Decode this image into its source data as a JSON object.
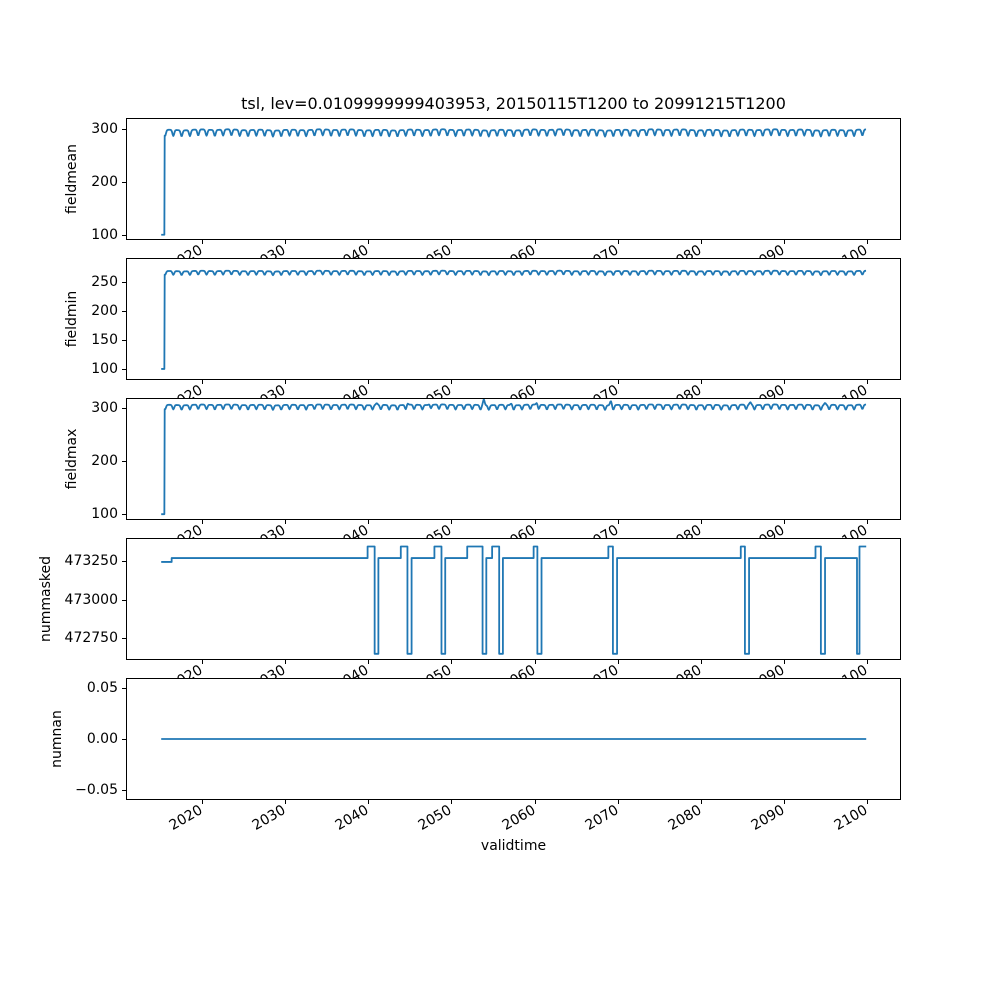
{
  "figure": {
    "title": "tsl, lev=0.0109999999403953, 20150115T1200 to 20991215T1200",
    "xlabel": "validtime",
    "background": "#ffffff",
    "line_color": "#1f77b4",
    "axis_color": "#000000",
    "xlim": [
      2010.8,
      2104.15
    ],
    "x_tick_rotation_deg": 30,
    "time_range": {
      "start": 2015.04,
      "end": 2099.96
    },
    "xticks": [
      {
        "v": 2020,
        "label": "2020"
      },
      {
        "v": 2030,
        "label": "2030"
      },
      {
        "v": 2040,
        "label": "2040"
      },
      {
        "v": 2050,
        "label": "2050"
      },
      {
        "v": 2060,
        "label": "2060"
      },
      {
        "v": 2070,
        "label": "2070"
      },
      {
        "v": 2080,
        "label": "2080"
      },
      {
        "v": 2090,
        "label": "2090"
      },
      {
        "v": 2100,
        "label": "2100"
      }
    ]
  },
  "chart_data": [
    {
      "id": "fieldmean",
      "type": "line",
      "ylabel": "fieldmean",
      "ylim": [
        90,
        321
      ],
      "yticks": [
        {
          "v": 100,
          "label": "100"
        },
        {
          "v": 200,
          "label": "200"
        },
        {
          "v": 300,
          "label": "300"
        }
      ],
      "series": {
        "kind": "seasonal",
        "t_start": 2015.04,
        "flat_until": 2015.42,
        "start_value": 100,
        "high": 298.5,
        "low": 287,
        "t_end": 2099.96,
        "period_years": 1,
        "peaks": []
      }
    },
    {
      "id": "fieldmin",
      "type": "line",
      "ylabel": "fieldmin",
      "ylim": [
        81,
        291
      ],
      "yticks": [
        {
          "v": 100,
          "label": "100"
        },
        {
          "v": 150,
          "label": "150"
        },
        {
          "v": 200,
          "label": "200"
        },
        {
          "v": 250,
          "label": "250"
        }
      ],
      "series": {
        "kind": "seasonal",
        "t_start": 2015.04,
        "flat_until": 2015.42,
        "start_value": 100,
        "high": 268.5,
        "low": 262,
        "t_end": 2099.96,
        "period_years": 1,
        "peaks": []
      }
    },
    {
      "id": "fieldmax",
      "type": "line",
      "ylabel": "fieldmax",
      "ylim": [
        89,
        319
      ],
      "yticks": [
        {
          "v": 100,
          "label": "100"
        },
        {
          "v": 200,
          "label": "200"
        },
        {
          "v": 300,
          "label": "300"
        }
      ],
      "series": {
        "kind": "seasonal",
        "t_start": 2015.04,
        "flat_until": 2015.42,
        "start_value": 100,
        "high": 306,
        "low": 297.5,
        "t_end": 2099.96,
        "period_years": 1,
        "peaks": [
          {
            "t": 2053.9,
            "amp": 11
          },
          {
            "t": 2069.2,
            "amp": 8
          },
          {
            "t": 2047.4,
            "amp": 4
          },
          {
            "t": 2060.3,
            "amp": 4
          },
          {
            "t": 2086.0,
            "amp": 5
          },
          {
            "t": 2095.0,
            "amp": 4
          },
          {
            "t": 2044.7,
            "amp": 3
          },
          {
            "t": 2041.0,
            "amp": 3
          },
          {
            "t": 2057.2,
            "amp": 3
          }
        ]
      }
    },
    {
      "id": "nummasked",
      "type": "line",
      "ylabel": "nummasked",
      "ylim": [
        472610,
        473400
      ],
      "yticks": [
        {
          "v": 472750,
          "label": "472750"
        },
        {
          "v": 473000,
          "label": "473000"
        },
        {
          "v": 473250,
          "label": "473250"
        }
      ],
      "series": {
        "kind": "steps",
        "segments": [
          [
            2015.04,
            2016.3,
            473245
          ],
          [
            2016.3,
            2039.9,
            473270
          ],
          [
            2039.9,
            2040.75,
            473345
          ],
          [
            2040.75,
            2041.2,
            472650
          ],
          [
            2041.2,
            2043.9,
            473270
          ],
          [
            2043.9,
            2044.7,
            473345
          ],
          [
            2044.7,
            2045.2,
            472650
          ],
          [
            2045.2,
            2047.95,
            473270
          ],
          [
            2047.95,
            2048.8,
            473345
          ],
          [
            2048.8,
            2049.25,
            472650
          ],
          [
            2049.25,
            2051.9,
            473270
          ],
          [
            2051.9,
            2053.75,
            473345
          ],
          [
            2053.75,
            2054.2,
            472650
          ],
          [
            2054.2,
            2054.9,
            473270
          ],
          [
            2054.9,
            2055.75,
            473345
          ],
          [
            2055.75,
            2056.2,
            472650
          ],
          [
            2056.2,
            2059.9,
            473270
          ],
          [
            2059.9,
            2060.35,
            473345
          ],
          [
            2060.35,
            2060.85,
            472650
          ],
          [
            2060.85,
            2068.9,
            473270
          ],
          [
            2068.9,
            2069.45,
            473345
          ],
          [
            2069.45,
            2069.95,
            472650
          ],
          [
            2069.95,
            2084.85,
            473270
          ],
          [
            2084.85,
            2085.35,
            473345
          ],
          [
            2085.35,
            2085.85,
            472650
          ],
          [
            2085.85,
            2093.85,
            473270
          ],
          [
            2093.85,
            2094.5,
            473345
          ],
          [
            2094.5,
            2095.0,
            472650
          ],
          [
            2095.0,
            2098.85,
            473270
          ],
          [
            2098.85,
            2099.15,
            472650
          ],
          [
            2099.15,
            2099.96,
            473345
          ]
        ]
      }
    },
    {
      "id": "numnan",
      "type": "line",
      "ylabel": "numnan",
      "ylim": [
        -0.0598,
        0.0598
      ],
      "yticks": [
        {
          "v": 0.05,
          "label": "0.05"
        },
        {
          "v": 0,
          "label": "0.00"
        },
        {
          "v": -0.05,
          "label": "−0.05"
        }
      ],
      "series": {
        "kind": "constant",
        "value": 0,
        "t_start": 2015.04,
        "t_end": 2099.96
      }
    }
  ]
}
